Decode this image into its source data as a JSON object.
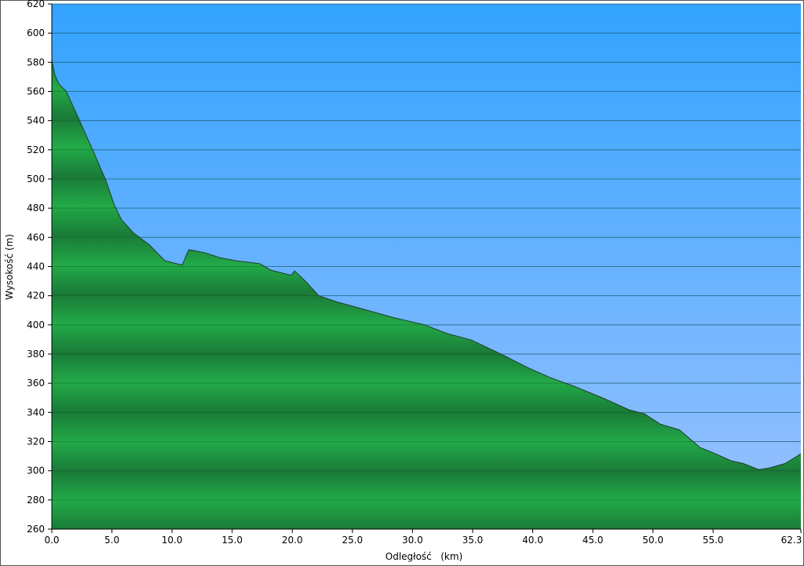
{
  "chart_data": {
    "type": "area",
    "title": "",
    "xlabel": "Odległość   (km)",
    "ylabel": "Wysokość (m)",
    "xlim": [
      0,
      62.3
    ],
    "ylim": [
      260,
      620
    ],
    "x_ticks": [
      "0.0",
      "5.0",
      "10.0",
      "15.0",
      "20.0",
      "25.0",
      "30.0",
      "35.0",
      "40.0",
      "45.0",
      "50.0",
      "55.0",
      "62.3"
    ],
    "y_ticks": [
      260,
      280,
      300,
      320,
      340,
      360,
      380,
      400,
      420,
      440,
      460,
      480,
      500,
      520,
      540,
      560,
      580,
      600,
      620
    ],
    "grid": true,
    "colors": {
      "sky_top": "#33a3ff",
      "sky_bottom": "#9cc2ff",
      "fill_light": "#22aa48",
      "fill_dark": "#1a7a38",
      "line": "#1f3d2a"
    },
    "series": [
      {
        "x": [
          0,
          0.26,
          0.6,
          1.2,
          2.2,
          3.5,
          4.5,
          5.2,
          5.8,
          6.8,
          8.1,
          9.4,
          10.85,
          11.2,
          11.4,
          12.7,
          14,
          15.3,
          17.3,
          18.2,
          19.9,
          20.2,
          21.2,
          22.2,
          23.8,
          25.8,
          28.4,
          31,
          32.9,
          34.9,
          37.5,
          39.5,
          41.4,
          43.4,
          46,
          48,
          49.3,
          50.6,
          52.2,
          53.9,
          55.2,
          56.5,
          57.5,
          58.8,
          59.7,
          61,
          62.3
        ],
        "y": [
          581,
          571,
          565,
          560,
          542,
          518,
          499,
          482,
          472,
          463,
          455,
          444,
          441,
          448,
          451.5,
          449.5,
          446,
          444,
          442,
          437.5,
          434,
          437,
          429,
          420,
          415.5,
          411,
          405,
          400,
          394,
          389.6,
          379.4,
          371,
          364,
          358,
          349.3,
          341.8,
          339,
          332,
          328,
          316,
          311.6,
          306.8,
          305,
          300.8,
          302,
          305,
          311.6
        ]
      }
    ]
  }
}
